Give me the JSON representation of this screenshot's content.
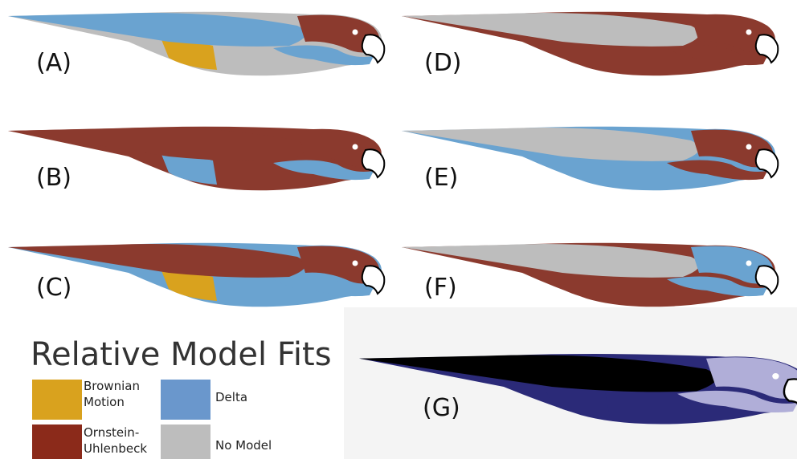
{
  "panels": [
    {
      "label": "(A)"
    },
    {
      "label": "(B)"
    },
    {
      "label": "(C)"
    },
    {
      "label": "(D)"
    },
    {
      "label": "(E)"
    },
    {
      "label": "(F)"
    },
    {
      "label": "(G)"
    }
  ],
  "legend": {
    "title": "Relative Model Fits",
    "items": [
      {
        "lines": [
          "Brownian",
          "Motion"
        ]
      },
      {
        "lines": [
          "Ornstein-",
          "Uhlenbeck"
        ]
      },
      {
        "lines": [
          "Delta"
        ]
      },
      {
        "lines": [
          "No Model"
        ]
      }
    ]
  }
}
